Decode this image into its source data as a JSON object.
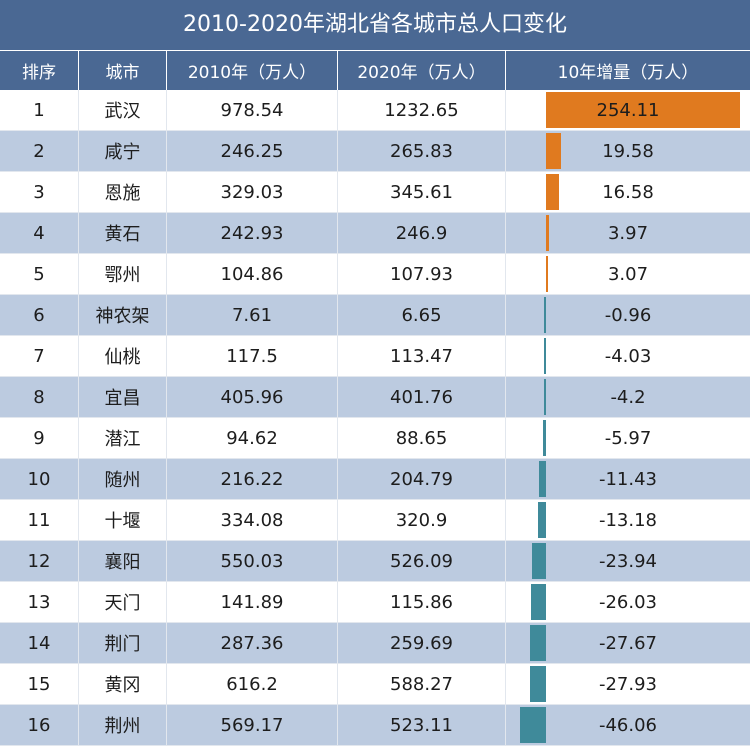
{
  "title": "2010-2020年湖北省各城市总人口变化",
  "headers": [
    "排序",
    "城市",
    "2010年（万人）",
    "2020年（万人）",
    "10年增量（万人）"
  ],
  "colors": {
    "header_bg": "#4a6893",
    "positive_bar": "#e07a1f",
    "negative_bar": "#3f8a9a",
    "alt_row": "#bccbe0"
  },
  "chart_data": {
    "type": "table",
    "title": "2010-2020年湖北省各城市总人口变化",
    "columns": [
      "排序",
      "城市",
      "2010年（万人）",
      "2020年（万人）",
      "10年增量（万人）"
    ],
    "rows": [
      {
        "rank": "1",
        "city": "武汉",
        "y2010": "978.54",
        "y2020": "1232.65",
        "delta": "254.11",
        "value": 254.11
      },
      {
        "rank": "2",
        "city": "咸宁",
        "y2010": "246.25",
        "y2020": "265.83",
        "delta": "19.58",
        "value": 19.58
      },
      {
        "rank": "3",
        "city": "恩施",
        "y2010": "329.03",
        "y2020": "345.61",
        "delta": "16.58",
        "value": 16.58
      },
      {
        "rank": "4",
        "city": "黄石",
        "y2010": "242.93",
        "y2020": "246.9",
        "delta": "3.97",
        "value": 3.97
      },
      {
        "rank": "5",
        "city": "鄂州",
        "y2010": "104.86",
        "y2020": "107.93",
        "delta": "3.07",
        "value": 3.07
      },
      {
        "rank": "6",
        "city": "神农架",
        "y2010": "7.61",
        "y2020": "6.65",
        "delta": "-0.96",
        "value": -0.96
      },
      {
        "rank": "7",
        "city": "仙桃",
        "y2010": "117.5",
        "y2020": "113.47",
        "delta": "-4.03",
        "value": -4.03
      },
      {
        "rank": "8",
        "city": "宜昌",
        "y2010": "405.96",
        "y2020": "401.76",
        "delta": "-4.2",
        "value": -4.2
      },
      {
        "rank": "9",
        "city": "潜江",
        "y2010": "94.62",
        "y2020": "88.65",
        "delta": "-5.97",
        "value": -5.97
      },
      {
        "rank": "10",
        "city": "随州",
        "y2010": "216.22",
        "y2020": "204.79",
        "delta": "-11.43",
        "value": -11.43
      },
      {
        "rank": "11",
        "city": "十堰",
        "y2010": "334.08",
        "y2020": "320.9",
        "delta": "-13.18",
        "value": -13.18
      },
      {
        "rank": "12",
        "city": "襄阳",
        "y2010": "550.03",
        "y2020": "526.09",
        "delta": "-23.94",
        "value": -23.94
      },
      {
        "rank": "13",
        "city": "天门",
        "y2010": "141.89",
        "y2020": "115.86",
        "delta": "-26.03",
        "value": -26.03
      },
      {
        "rank": "14",
        "city": "荆门",
        "y2010": "287.36",
        "y2020": "259.69",
        "delta": "-27.67",
        "value": -27.67
      },
      {
        "rank": "15",
        "city": "黄冈",
        "y2010": "616.2",
        "y2020": "588.27",
        "delta": "-27.93",
        "value": -27.93
      },
      {
        "rank": "16",
        "city": "荆州",
        "y2010": "569.17",
        "y2020": "523.11",
        "delta": "-46.06",
        "value": -46.06
      }
    ]
  }
}
